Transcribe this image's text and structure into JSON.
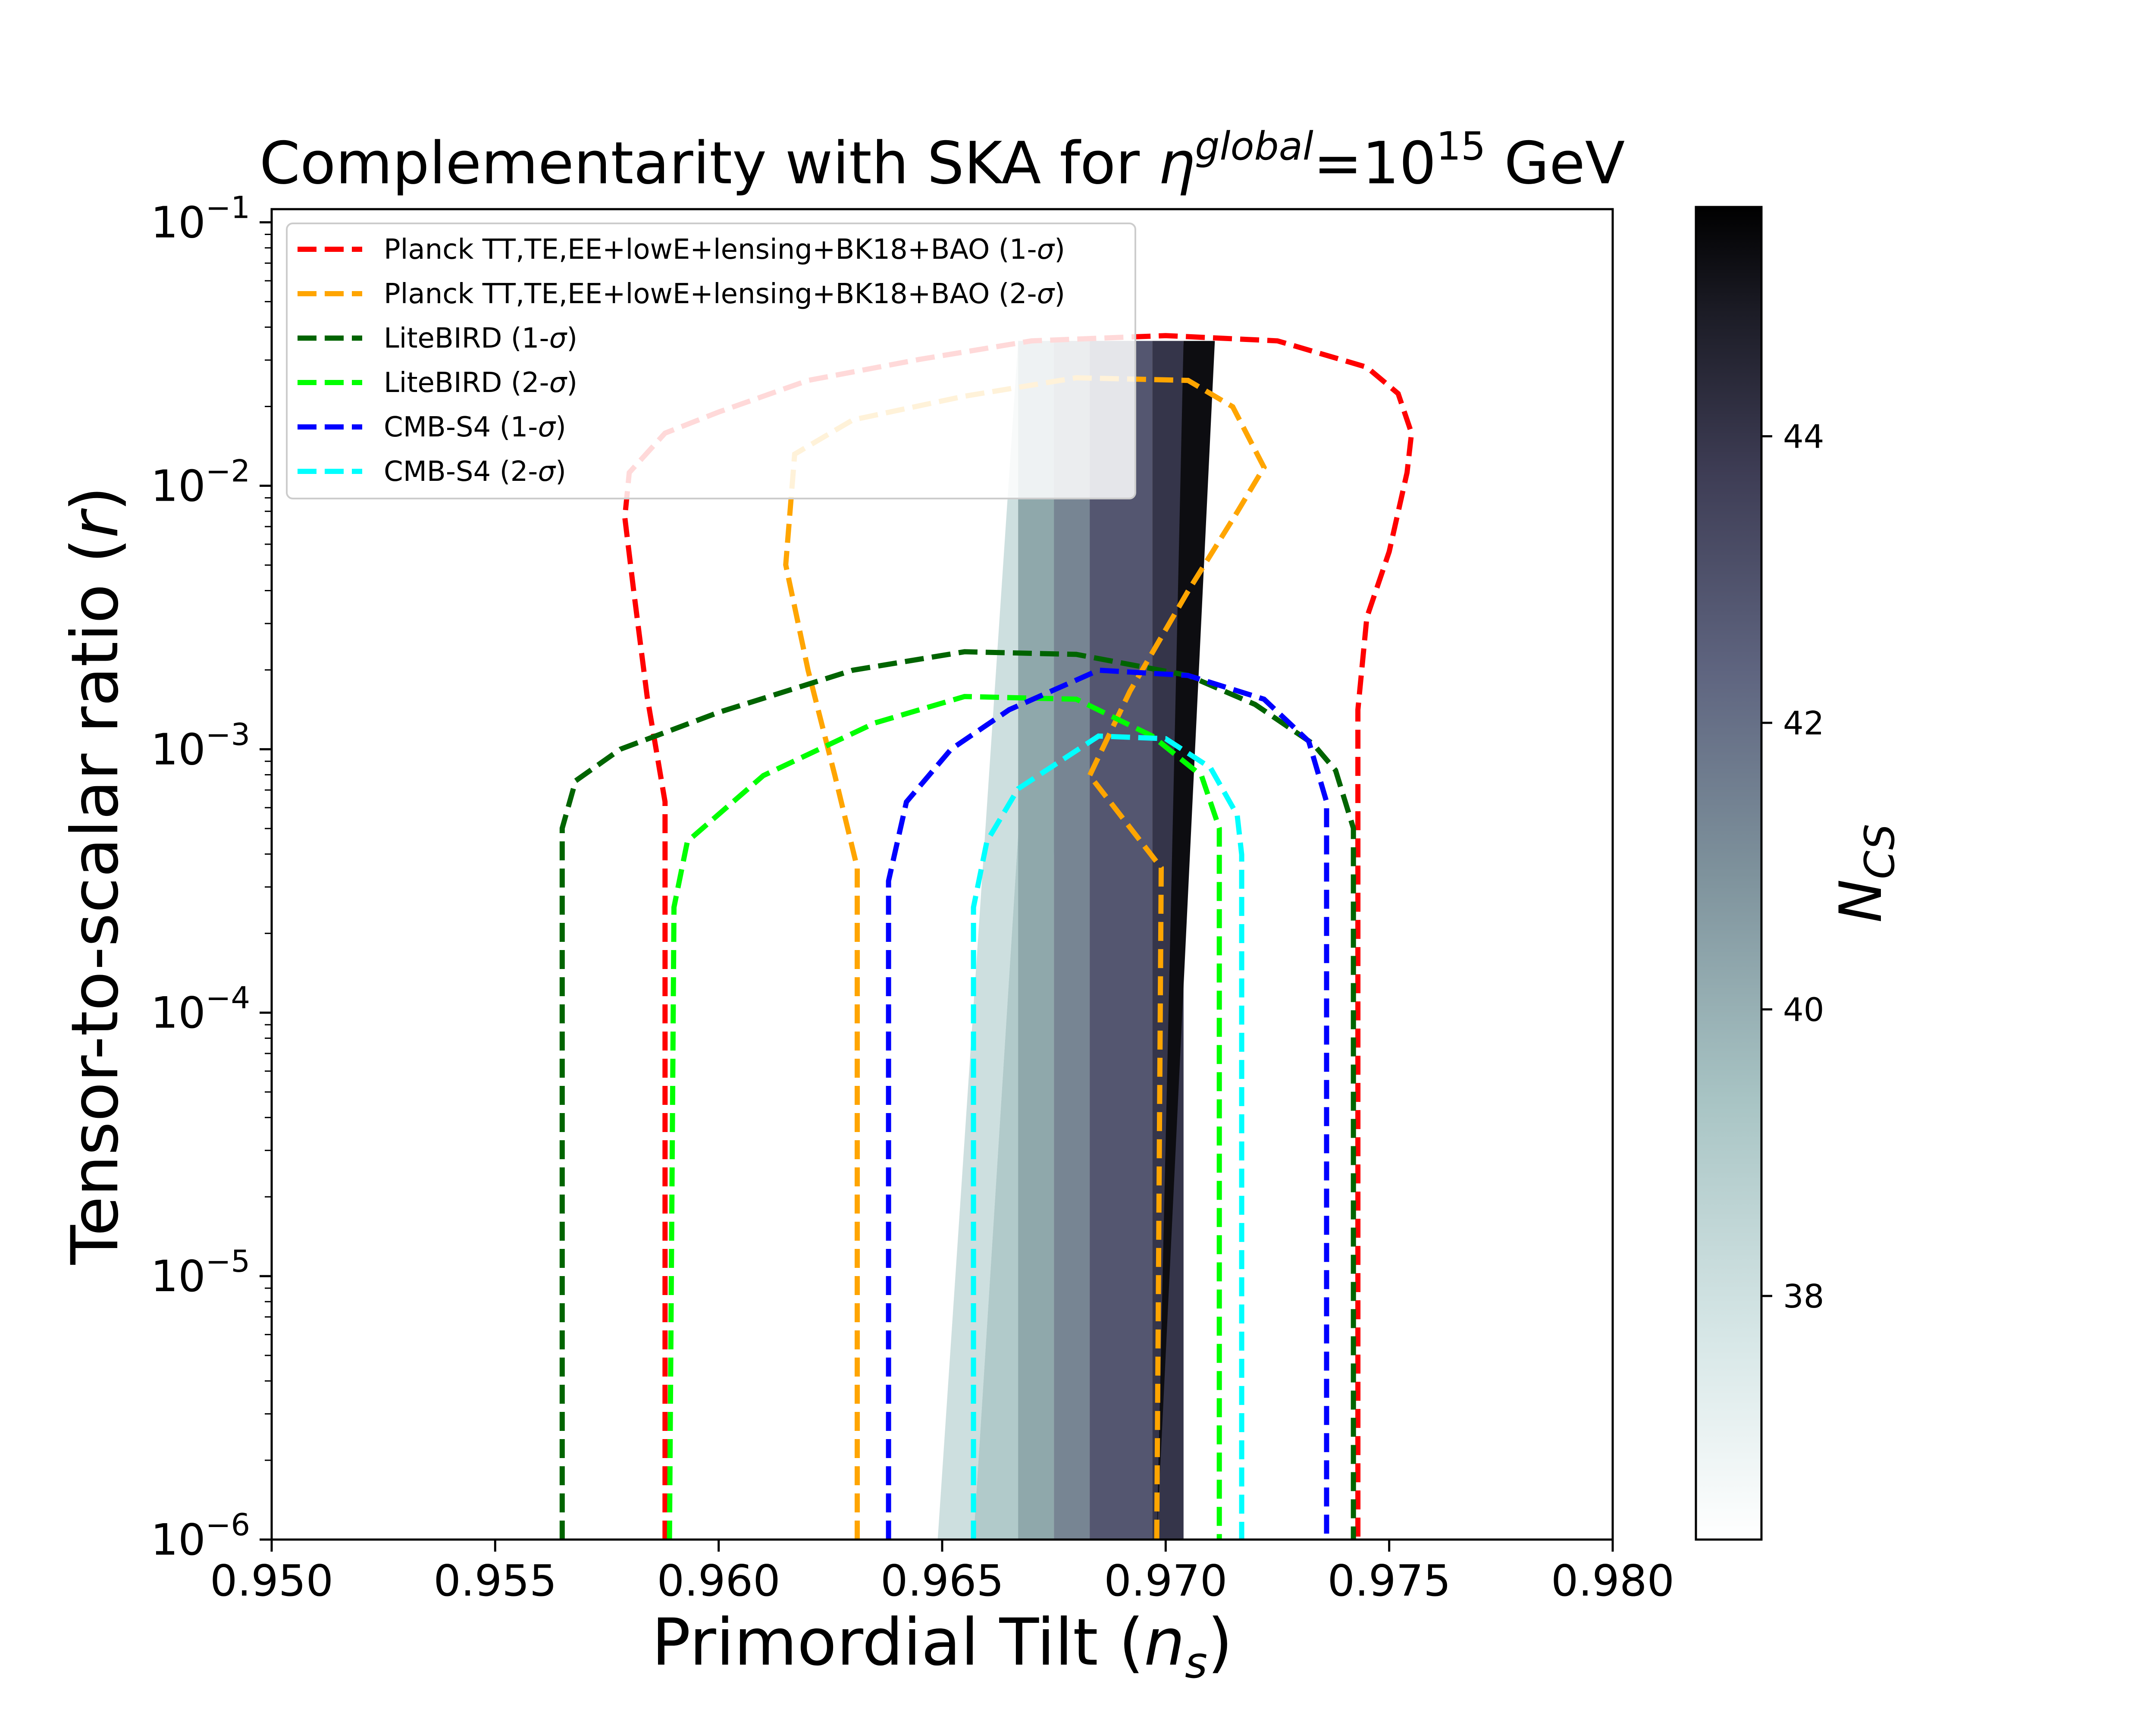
{
  "chart_data": {
    "type": "line",
    "title_main": "Complementarity with SKA for ",
    "title_eta": "η",
    "title_sup": "global",
    "title_eq": "=10",
    "title_exp": "15",
    "title_unit": " GeV",
    "xlabel_main": "Primordial Tilt (",
    "xlabel_var": "n",
    "xlabel_sub": "s",
    "xlabel_close": ")",
    "ylabel_main": "Tensor-to-scalar ratio (",
    "ylabel_var": "r",
    "ylabel_close": ")",
    "xlim": [
      0.95,
      0.98
    ],
    "ylim_log10": [
      -6,
      -0.95
    ],
    "xscale": "linear",
    "yscale": "log",
    "x_ticks": [
      {
        "value": 0.95,
        "label": "0.950"
      },
      {
        "value": 0.955,
        "label": "0.955"
      },
      {
        "value": 0.96,
        "label": "0.960"
      },
      {
        "value": 0.965,
        "label": "0.965"
      },
      {
        "value": 0.97,
        "label": "0.970"
      },
      {
        "value": 0.975,
        "label": "0.975"
      },
      {
        "value": 0.98,
        "label": "0.980"
      }
    ],
    "y_ticks": [
      {
        "exp": -6,
        "base": "10",
        "sup": "−6"
      },
      {
        "exp": -5,
        "base": "10",
        "sup": "−5"
      },
      {
        "exp": -4,
        "base": "10",
        "sup": "−4"
      },
      {
        "exp": -3,
        "base": "10",
        "sup": "−3"
      },
      {
        "exp": -2,
        "base": "10",
        "sup": "−2"
      },
      {
        "exp": -1,
        "base": "10",
        "sup": "−1"
      }
    ],
    "legend_position": "upper-left",
    "series": [
      {
        "name": "Planck TT,TE,EE+lowE+lensing+BK18+BAO (1-σ)",
        "legend_main": "Planck TT,TE,EE+lowE+lensing+BK18+BAO (1-",
        "legend_sigma": "σ",
        "legend_close": ")",
        "color": "#ff0000",
        "points": [
          [
            0.9588,
            -6
          ],
          [
            0.9588,
            -3.2
          ],
          [
            0.9584,
            -2.8
          ],
          [
            0.9581,
            -2.4
          ],
          [
            0.9579,
            -2.12
          ],
          [
            0.958,
            -1.95
          ],
          [
            0.9588,
            -1.8
          ],
          [
            0.96,
            -1.72
          ],
          [
            0.962,
            -1.6
          ],
          [
            0.9645,
            -1.52
          ],
          [
            0.967,
            -1.45
          ],
          [
            0.97,
            -1.43
          ],
          [
            0.9725,
            -1.45
          ],
          [
            0.9745,
            -1.55
          ],
          [
            0.9752,
            -1.65
          ],
          [
            0.9755,
            -1.8
          ],
          [
            0.9754,
            -1.95
          ],
          [
            0.975,
            -2.25
          ],
          [
            0.9745,
            -2.5
          ],
          [
            0.9743,
            -2.85
          ],
          [
            0.9743,
            -3.2
          ],
          [
            0.9743,
            -6
          ]
        ]
      },
      {
        "name": "Planck TT,TE,EE+lowE+lensing+BK18+BAO (2-σ)",
        "legend_main": "Planck TT,TE,EE+lowE+lensing+BK18+BAO (2-",
        "legend_sigma": "σ",
        "legend_close": ")",
        "color": "#ffa500",
        "points": [
          [
            0.9631,
            -6
          ],
          [
            0.9631,
            -3.45
          ],
          [
            0.9626,
            -3.1
          ],
          [
            0.962,
            -2.7
          ],
          [
            0.9615,
            -2.3
          ],
          [
            0.9617,
            -1.88
          ],
          [
            0.963,
            -1.75
          ],
          [
            0.9655,
            -1.66
          ],
          [
            0.968,
            -1.59
          ],
          [
            0.9705,
            -1.6
          ],
          [
            0.9715,
            -1.7
          ],
          [
            0.9722,
            -1.93
          ],
          [
            0.9716,
            -2.1
          ],
          [
            0.9705,
            -2.4
          ],
          [
            0.9692,
            -2.78
          ],
          [
            0.9683,
            -3.1
          ],
          [
            0.9699,
            -3.45
          ],
          [
            0.9698,
            -6
          ]
        ]
      },
      {
        "name": "LiteBIRD (1-σ)",
        "legend_main": "LiteBIRD (1-",
        "legend_sigma": "σ",
        "legend_close": ")",
        "color": "#006400",
        "points": [
          [
            0.9565,
            -6
          ],
          [
            0.9565,
            -3.3
          ],
          [
            0.9568,
            -3.12
          ],
          [
            0.9578,
            -3.0
          ],
          [
            0.96,
            -2.86
          ],
          [
            0.963,
            -2.7
          ],
          [
            0.9655,
            -2.63
          ],
          [
            0.968,
            -2.64
          ],
          [
            0.9705,
            -2.72
          ],
          [
            0.972,
            -2.83
          ],
          [
            0.9733,
            -2.98
          ],
          [
            0.9738,
            -3.08
          ],
          [
            0.9742,
            -3.3
          ],
          [
            0.9742,
            -6
          ]
        ]
      },
      {
        "name": "LiteBIRD (2-σ)",
        "legend_main": "LiteBIRD (2-",
        "legend_sigma": "σ",
        "legend_close": ")",
        "color": "#00ff00",
        "points": [
          [
            0.9589,
            -6
          ],
          [
            0.959,
            -3.6
          ],
          [
            0.9593,
            -3.35
          ],
          [
            0.961,
            -3.1
          ],
          [
            0.9635,
            -2.9
          ],
          [
            0.9655,
            -2.8
          ],
          [
            0.968,
            -2.81
          ],
          [
            0.9697,
            -2.95
          ],
          [
            0.9708,
            -3.1
          ],
          [
            0.9712,
            -3.3
          ],
          [
            0.9712,
            -6
          ]
        ]
      },
      {
        "name": "CMB-S4 (1-σ)",
        "legend_main": "CMB-S4 (1-",
        "legend_sigma": "σ",
        "legend_close": ")",
        "color": "#0000ff",
        "points": [
          [
            0.9638,
            -6
          ],
          [
            0.9638,
            -3.5
          ],
          [
            0.9642,
            -3.2
          ],
          [
            0.9652,
            -3.0
          ],
          [
            0.9665,
            -2.85
          ],
          [
            0.9685,
            -2.7
          ],
          [
            0.9705,
            -2.72
          ],
          [
            0.9722,
            -2.81
          ],
          [
            0.9732,
            -2.97
          ],
          [
            0.9736,
            -3.2
          ],
          [
            0.9736,
            -6
          ]
        ]
      },
      {
        "name": "CMB-S4 (2-σ)",
        "legend_main": "CMB-S4 (2-",
        "legend_sigma": "σ",
        "legend_close": ")",
        "color": "#00ffff",
        "points": [
          [
            0.9657,
            -6
          ],
          [
            0.9657,
            -3.6
          ],
          [
            0.966,
            -3.35
          ],
          [
            0.9667,
            -3.15
          ],
          [
            0.9685,
            -2.95
          ],
          [
            0.97,
            -2.96
          ],
          [
            0.971,
            -3.07
          ],
          [
            0.9716,
            -3.25
          ],
          [
            0.9717,
            -3.4
          ],
          [
            0.9717,
            -6
          ]
        ]
      }
    ],
    "shaded_region": {
      "description": "SKA complementarity band colored by N_CS",
      "top_log10r": -1.45,
      "bands": [
        {
          "left": [
            [
              0.9678,
              -1.45
            ],
            [
              0.9668,
              -1.45
            ],
            [
              0.9649,
              -6
            ]
          ],
          "right": [
            [
              0.9685,
              -1.45
            ],
            [
              0.9675,
              -6
            ]
          ],
          "ncs": 37.5
        },
        {
          "left": [
            [
              0.9674,
              -1.45
            ],
            [
              0.9657,
              -6
            ]
          ],
          "right": [
            [
              0.9681,
              -1.45
            ],
            [
              0.9667,
              -6
            ]
          ],
          "ncs": 39.0
        },
        {
          "left": [
            [
              0.9667,
              -1.45
            ],
            [
              0.9649,
              -6
            ]
          ],
          "right": [
            [
              0.9674,
              -1.45
            ],
            [
              0.9657,
              -6
            ]
          ],
          "ncs": 38.2
        },
        {
          "left": [
            [
              0.9667,
              -1.45
            ],
            [
              0.9667,
              -6
            ]
          ],
          "right": [
            [
              0.9675,
              -1.45
            ],
            [
              0.9675,
              -6
            ]
          ],
          "ncs": 40.3
        },
        {
          "left": [
            [
              0.9675,
              -1.45
            ],
            [
              0.9675,
              -6
            ]
          ],
          "right": [
            [
              0.9683,
              -1.45
            ],
            [
              0.9683,
              -6
            ]
          ],
          "ncs": 41.3
        },
        {
          "left": [
            [
              0.9683,
              -1.45
            ],
            [
              0.9683,
              -6
            ]
          ],
          "right": [
            [
              0.9697,
              -1.45
            ],
            [
              0.9697,
              -6
            ]
          ],
          "ncs": 42.6
        },
        {
          "left": [
            [
              0.9697,
              -1.45
            ],
            [
              0.9697,
              -6
            ]
          ],
          "right": [
            [
              0.9704,
              -1.45
            ],
            [
              0.9704,
              -6
            ]
          ],
          "ncs": 43.8
        },
        {
          "left": [
            [
              0.9704,
              -1.45
            ],
            [
              0.9698,
              -6
            ]
          ],
          "right": [
            [
              0.9711,
              -1.45
            ],
            [
              0.9698,
              -6
            ]
          ],
          "ncs": 45.2
        }
      ]
    },
    "colorbar": {
      "label_main": "N",
      "label_sub": "CS",
      "min": 36.3,
      "max": 45.6,
      "ticks": [
        {
          "value": 38,
          "label": "38"
        },
        {
          "value": 40,
          "label": "40"
        },
        {
          "value": 42,
          "label": "42"
        },
        {
          "value": 44,
          "label": "44"
        }
      ],
      "colormap": [
        "#ffffff",
        "#e2eeee",
        "#b2cbcb",
        "#8fa9ab",
        "#6f7a8c",
        "#4a4a66",
        "#2a2a3a",
        "#000000"
      ]
    }
  }
}
